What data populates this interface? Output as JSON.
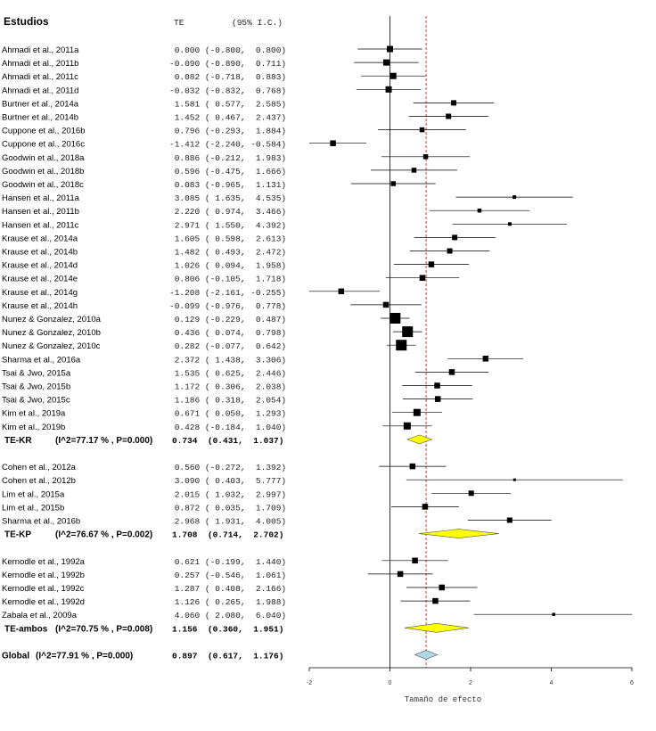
{
  "chart_data": {
    "type": "forest",
    "header": {
      "studies": "Estudios",
      "te": "TE",
      "ci": "(95% I.C.)"
    },
    "xlabel": "Tamaño de efecto",
    "xlim": [
      -2,
      6
    ],
    "xticks": [
      "-2",
      "0",
      "2",
      "4",
      "6"
    ],
    "overall_reference_line": 0.897,
    "rows": [
      {
        "kind": "study",
        "label": "Ahmadi et al., 2011a",
        "te": 0.0,
        "lo": -0.8,
        "hi": 0.8,
        "text": " 0.000 (-0.800,  0.800)",
        "weight": 0.5
      },
      {
        "kind": "study",
        "label": "Ahmadi et al., 2011b",
        "te": -0.09,
        "lo": -0.89,
        "hi": 0.711,
        "text": "-0.090 (-0.890,  0.711)",
        "weight": 0.5
      },
      {
        "kind": "study",
        "label": "Ahmadi et al., 2011c",
        "te": 0.082,
        "lo": -0.718,
        "hi": 0.883,
        "text": " 0.082 (-0.718,  0.883)",
        "weight": 0.5
      },
      {
        "kind": "study",
        "label": "Ahmadi et al., 2011d",
        "te": -0.032,
        "lo": -0.832,
        "hi": 0.768,
        "text": "-0.032 (-0.832,  0.768)",
        "weight": 0.5
      },
      {
        "kind": "study",
        "label": "Burtner et al., 2014a",
        "te": 1.581,
        "lo": 0.577,
        "hi": 2.585,
        "text": " 1.581 ( 0.577,  2.585)",
        "weight": 0.4
      },
      {
        "kind": "study",
        "label": "Burtner et al., 2014b",
        "te": 1.452,
        "lo": 0.467,
        "hi": 2.437,
        "text": " 1.452 ( 0.467,  2.437)",
        "weight": 0.4
      },
      {
        "kind": "study",
        "label": "Cuppone et al., 2016b",
        "te": 0.796,
        "lo": -0.293,
        "hi": 1.884,
        "text": " 0.796 (-0.293,  1.884)",
        "weight": 0.35
      },
      {
        "kind": "study",
        "label": "Cuppone et al., 2016c",
        "te": -1.412,
        "lo": -2.24,
        "hi": -0.584,
        "text": "-1.412 (-2.240, -0.584)",
        "weight": 0.45
      },
      {
        "kind": "study",
        "label": "Goodwin et al., 2018a",
        "te": 0.886,
        "lo": -0.212,
        "hi": 1.983,
        "text": " 0.886 (-0.212,  1.983)",
        "weight": 0.35
      },
      {
        "kind": "study",
        "label": "Goodwin et al., 2018b",
        "te": 0.596,
        "lo": -0.475,
        "hi": 1.666,
        "text": " 0.596 (-0.475,  1.666)",
        "weight": 0.35
      },
      {
        "kind": "study",
        "label": "Goodwin et al., 2018c",
        "te": 0.083,
        "lo": -0.965,
        "hi": 1.131,
        "text": " 0.083 (-0.965,  1.131)",
        "weight": 0.35
      },
      {
        "kind": "study",
        "label": "Hansen et al., 2011a",
        "te": 3.085,
        "lo": 1.635,
        "hi": 4.535,
        "text": " 3.085 ( 1.635,  4.535)",
        "weight": 0.2
      },
      {
        "kind": "study",
        "label": "Hansen et al., 2011b",
        "te": 2.22,
        "lo": 0.974,
        "hi": 3.466,
        "text": " 2.220 ( 0.974,  3.466)",
        "weight": 0.25
      },
      {
        "kind": "study",
        "label": "Hansen et al., 2011c",
        "te": 2.971,
        "lo": 1.55,
        "hi": 4.392,
        "text": " 2.971 ( 1.550,  4.392)",
        "weight": 0.2
      },
      {
        "kind": "study",
        "label": "Krause et al., 2014a",
        "te": 1.605,
        "lo": 0.598,
        "hi": 2.613,
        "text": " 1.605 ( 0.598,  2.613)",
        "weight": 0.4
      },
      {
        "kind": "study",
        "label": "Krause et al., 2014b",
        "te": 1.482,
        "lo": 0.493,
        "hi": 2.472,
        "text": " 1.482 ( 0.493,  2.472)",
        "weight": 0.4
      },
      {
        "kind": "study",
        "label": "Krause et al., 2014d",
        "te": 1.026,
        "lo": 0.094,
        "hi": 1.958,
        "text": " 1.026 ( 0.094,  1.958)",
        "weight": 0.45
      },
      {
        "kind": "study",
        "label": "Krause et al., 2014e",
        "te": 0.806,
        "lo": -0.105,
        "hi": 1.718,
        "text": " 0.806 (-0.105,  1.718)",
        "weight": 0.45
      },
      {
        "kind": "study",
        "label": "Krause et al., 2014g",
        "te": -1.208,
        "lo": -2.161,
        "hi": -0.255,
        "text": "-1.208 (-2.161, -0.255)",
        "weight": 0.45
      },
      {
        "kind": "study",
        "label": "Krause et al., 2014h",
        "te": -0.099,
        "lo": -0.976,
        "hi": 0.778,
        "text": "-0.099 (-0.976,  0.778)",
        "weight": 0.45
      },
      {
        "kind": "study",
        "label": "Nunez & Gonzalez, 2010a",
        "te": 0.129,
        "lo": -0.229,
        "hi": 0.487,
        "text": " 0.129 (-0.229,  0.487)",
        "weight": 1.0
      },
      {
        "kind": "study",
        "label": "Nunez & Gonzalez, 2010b",
        "te": 0.436,
        "lo": 0.074,
        "hi": 0.798,
        "text": " 0.436 ( 0.074,  0.798)",
        "weight": 1.0
      },
      {
        "kind": "study",
        "label": "Nunez & Gonzalez, 2010c",
        "te": 0.282,
        "lo": -0.077,
        "hi": 0.642,
        "text": " 0.282 (-0.077,  0.642)",
        "weight": 1.0
      },
      {
        "kind": "study",
        "label": "Sharma et al., 2016a",
        "te": 2.372,
        "lo": 1.438,
        "hi": 3.306,
        "text": " 2.372 ( 1.438,  3.306)",
        "weight": 0.45
      },
      {
        "kind": "study",
        "label": "Tsai & Jwo, 2015a",
        "te": 1.535,
        "lo": 0.625,
        "hi": 2.446,
        "text": " 1.535 ( 0.625,  2.446)",
        "weight": 0.45
      },
      {
        "kind": "study",
        "label": "Tsai & Jwo, 2015b",
        "te": 1.172,
        "lo": 0.306,
        "hi": 2.038,
        "text": " 1.172 ( 0.306,  2.038)",
        "weight": 0.45
      },
      {
        "kind": "study",
        "label": "Tsai & Jwo, 2015c",
        "te": 1.186,
        "lo": 0.318,
        "hi": 2.054,
        "text": " 1.186 ( 0.318,  2.054)",
        "weight": 0.45
      },
      {
        "kind": "study",
        "label": "Kim et al., 2019a",
        "te": 0.671,
        "lo": 0.05,
        "hi": 1.293,
        "text": " 0.671 ( 0.050,  1.293)",
        "weight": 0.6
      },
      {
        "kind": "study",
        "label": "Kim et al., 2019b",
        "te": 0.428,
        "lo": -0.184,
        "hi": 1.04,
        "text": " 0.428 (-0.184,  1.040)",
        "weight": 0.6
      },
      {
        "kind": "subtotal",
        "label": "TE-KR",
        "het": "(I^2=77.17 % , P=0.000)",
        "te": 0.734,
        "lo": 0.431,
        "hi": 1.037,
        "text": "0.734  (0.431,  1.037)",
        "color": "#ffff00"
      },
      {
        "kind": "spacer"
      },
      {
        "kind": "study",
        "label": "Cohen et al., 2012a",
        "te": 0.56,
        "lo": -0.272,
        "hi": 1.392,
        "text": " 0.560 (-0.272,  1.392)",
        "weight": 0.45
      },
      {
        "kind": "study",
        "label": "Cohen et al., 2012b",
        "te": 3.09,
        "lo": 0.403,
        "hi": 5.777,
        "text": " 3.090 ( 0.403,  5.777)",
        "weight": 0.1
      },
      {
        "kind": "study",
        "label": "Lim et al., 2015a",
        "te": 2.015,
        "lo": 1.032,
        "hi": 2.997,
        "text": " 2.015 ( 1.032,  2.997)",
        "weight": 0.4
      },
      {
        "kind": "study",
        "label": "Lim et al., 2015b",
        "te": 0.872,
        "lo": 0.035,
        "hi": 1.709,
        "text": " 0.872 ( 0.035,  1.709)",
        "weight": 0.45
      },
      {
        "kind": "study",
        "label": "Sharma et al., 2016b",
        "te": 2.968,
        "lo": 1.931,
        "hi": 4.005,
        "text": " 2.968 ( 1.931,  4.005)",
        "weight": 0.4
      },
      {
        "kind": "subtotal",
        "label": "TE-KP",
        "het": "(I^2=76.67 % , P=0.002)",
        "te": 1.708,
        "lo": 0.714,
        "hi": 2.702,
        "text": "1.708  (0.714,  2.702)",
        "color": "#ffff00"
      },
      {
        "kind": "spacer"
      },
      {
        "kind": "study",
        "label": "Kernodle et al., 1992a",
        "te": 0.621,
        "lo": -0.199,
        "hi": 1.44,
        "text": " 0.621 (-0.199,  1.440)",
        "weight": 0.45
      },
      {
        "kind": "study",
        "label": "Kernodle et al., 1992b",
        "te": 0.257,
        "lo": -0.546,
        "hi": 1.061,
        "text": " 0.257 (-0.546,  1.061)",
        "weight": 0.45
      },
      {
        "kind": "study",
        "label": "Kernodle et al., 1992c",
        "te": 1.287,
        "lo": 0.408,
        "hi": 2.166,
        "text": " 1.287 ( 0.408,  2.166)",
        "weight": 0.45
      },
      {
        "kind": "study",
        "label": "Kernodle et al., 1992d",
        "te": 1.126,
        "lo": 0.265,
        "hi": 1.988,
        "text": " 1.126 ( 0.265,  1.988)",
        "weight": 0.45
      },
      {
        "kind": "study",
        "label": "Zabala et al., 2009a",
        "te": 4.06,
        "lo": 2.08,
        "hi": 6.04,
        "text": " 4.060 ( 2.080,  6.040)",
        "weight": 0.15
      },
      {
        "kind": "subtotal",
        "label": "TE-ambos",
        "het": "(I^2=70.75 % , P=0.008)",
        "te": 1.156,
        "lo": 0.36,
        "hi": 1.951,
        "text": "1.156  (0.360,  1.951)",
        "color": "#ffff00"
      },
      {
        "kind": "spacer"
      },
      {
        "kind": "overall",
        "label": "Global",
        "het": "(I^2=77.91 % , P=0.000)",
        "te": 0.897,
        "lo": 0.617,
        "hi": 1.176,
        "text": "0.897  (0.617,  1.176)",
        "color": "#add8e6"
      }
    ]
  }
}
